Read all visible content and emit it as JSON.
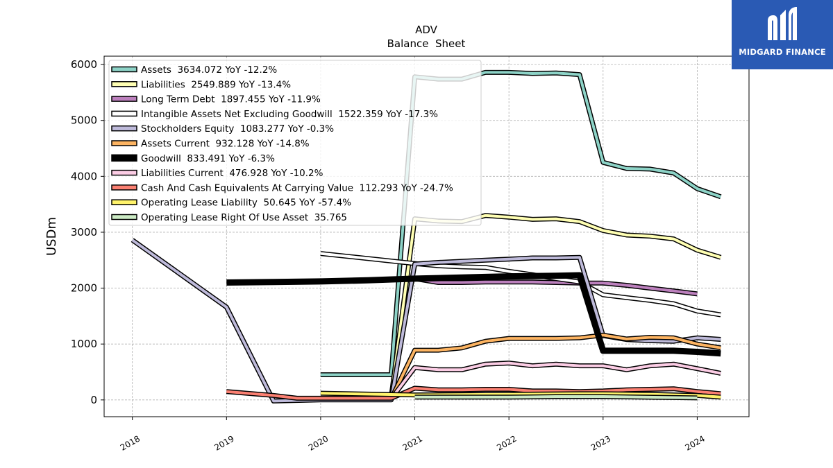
{
  "brand": {
    "name": "MIDGARD FINANCE",
    "bg_color": "#2a5ab4",
    "icon": "midgard-m-logo-icon"
  },
  "chart_data": {
    "type": "line",
    "title": "ADV",
    "subtitle": "Balance  Sheet",
    "xlabel": "",
    "ylabel": "USDm",
    "xlim": [
      2017.7,
      2024.55
    ],
    "ylim": [
      -300,
      6150
    ],
    "x_ticks": [
      2018,
      2019,
      2020,
      2021,
      2022,
      2023,
      2024
    ],
    "x_tick_labels": [
      "2018",
      "2019",
      "2020",
      "2021",
      "2022",
      "2023",
      "2024"
    ],
    "y_ticks": [
      0,
      1000,
      2000,
      3000,
      4000,
      5000,
      6000
    ],
    "y_tick_labels": [
      "0",
      "1000",
      "2000",
      "3000",
      "4000",
      "5000",
      "6000"
    ],
    "grid": true,
    "legend_position": "top-left",
    "series": [
      {
        "name": "Assets",
        "legend": "Assets  3634.072 YoY -12.2%",
        "color": "#8dd3c7",
        "width": 4,
        "points": [
          [
            2020,
            450
          ],
          [
            2020.75,
            450
          ],
          [
            2021,
            5780
          ],
          [
            2021.25,
            5740
          ],
          [
            2021.5,
            5740
          ],
          [
            2021.75,
            5860
          ],
          [
            2022,
            5860
          ],
          [
            2022.25,
            5840
          ],
          [
            2022.5,
            5850
          ],
          [
            2022.75,
            5820
          ],
          [
            2023,
            4250
          ],
          [
            2023.25,
            4140
          ],
          [
            2023.5,
            4130
          ],
          [
            2023.75,
            4060
          ],
          [
            2024,
            3780
          ],
          [
            2024.25,
            3634
          ]
        ]
      },
      {
        "name": "Liabilities",
        "legend": "Liabilities  2549.889 YoY -13.4%",
        "color": "#ffffb3",
        "width": 4,
        "points": [
          [
            2020.75,
            60
          ],
          [
            2021,
            3240
          ],
          [
            2021.25,
            3200
          ],
          [
            2021.5,
            3190
          ],
          [
            2021.75,
            3300
          ],
          [
            2022,
            3270
          ],
          [
            2022.25,
            3230
          ],
          [
            2022.5,
            3240
          ],
          [
            2022.75,
            3190
          ],
          [
            2023,
            3030
          ],
          [
            2023.25,
            2950
          ],
          [
            2023.5,
            2930
          ],
          [
            2023.75,
            2880
          ],
          [
            2024,
            2680
          ],
          [
            2024.25,
            2550
          ]
        ]
      },
      {
        "name": "Long Term Debt",
        "legend": "Long Term Debt  1897.455 YoY -11.9%",
        "color": "#bc80bd",
        "width": 4,
        "points": [
          [
            2021,
            2170
          ],
          [
            2021.25,
            2100
          ],
          [
            2021.5,
            2100
          ],
          [
            2021.75,
            2110
          ],
          [
            2022,
            2110
          ],
          [
            2022.25,
            2110
          ],
          [
            2022.5,
            2100
          ],
          [
            2022.75,
            2090
          ],
          [
            2023,
            2090
          ],
          [
            2023.25,
            2050
          ],
          [
            2023.5,
            2000
          ],
          [
            2023.75,
            1950
          ],
          [
            2024,
            1897
          ]
        ]
      },
      {
        "name": "Intangible Assets Net Excluding Goodwill",
        "legend": "Intangible Assets Net Excluding Goodwill  1522.359 YoY -17.3%",
        "color": "#ffffff",
        "width": 4,
        "points": [
          [
            2020,
            2620
          ],
          [
            2021,
            2440
          ],
          [
            2021.25,
            2400
          ],
          [
            2021.5,
            2380
          ],
          [
            2021.75,
            2370
          ],
          [
            2022,
            2300
          ],
          [
            2022.25,
            2240
          ],
          [
            2022.5,
            2170
          ],
          [
            2022.75,
            2110
          ],
          [
            2023,
            1880
          ],
          [
            2023.25,
            1830
          ],
          [
            2023.5,
            1780
          ],
          [
            2023.75,
            1720
          ],
          [
            2024,
            1590
          ],
          [
            2024.25,
            1522
          ]
        ]
      },
      {
        "name": "Stockholders Equity",
        "legend": "Stockholders Equity  1083.277 YoY -0.3%",
        "color": "#bebada",
        "width": 4,
        "points": [
          [
            2018,
            2860
          ],
          [
            2019,
            1660
          ],
          [
            2019.5,
            -20
          ],
          [
            2020,
            0
          ],
          [
            2020.75,
            0
          ],
          [
            2021,
            2430
          ],
          [
            2021.25,
            2460
          ],
          [
            2021.5,
            2480
          ],
          [
            2021.75,
            2500
          ],
          [
            2022,
            2520
          ],
          [
            2022.25,
            2540
          ],
          [
            2022.5,
            2540
          ],
          [
            2022.75,
            2550
          ],
          [
            2023,
            1150
          ],
          [
            2023.25,
            1080
          ],
          [
            2023.5,
            1060
          ],
          [
            2023.75,
            1050
          ],
          [
            2024,
            1110
          ],
          [
            2024.25,
            1083
          ]
        ]
      },
      {
        "name": "Assets Current",
        "legend": "Assets Current  932.128 YoY -14.8%",
        "color": "#fdb462",
        "width": 4,
        "points": [
          [
            2020.75,
            20
          ],
          [
            2021,
            890
          ],
          [
            2021.25,
            890
          ],
          [
            2021.5,
            930
          ],
          [
            2021.75,
            1050
          ],
          [
            2022,
            1100
          ],
          [
            2022.25,
            1100
          ],
          [
            2022.5,
            1100
          ],
          [
            2022.75,
            1110
          ],
          [
            2023,
            1160
          ],
          [
            2023.25,
            1090
          ],
          [
            2023.5,
            1120
          ],
          [
            2023.75,
            1110
          ],
          [
            2024,
            1000
          ],
          [
            2024.25,
            932
          ]
        ]
      },
      {
        "name": "Goodwill",
        "legend": "Goodwill  833.491 YoY -6.3%",
        "color": "#000000",
        "width": 9,
        "points": [
          [
            2019,
            2100
          ],
          [
            2019.5,
            2110
          ],
          [
            2020,
            2120
          ],
          [
            2020.5,
            2140
          ],
          [
            2021,
            2170
          ],
          [
            2021.5,
            2190
          ],
          [
            2021.75,
            2200
          ],
          [
            2022,
            2210
          ],
          [
            2022.5,
            2220
          ],
          [
            2022.75,
            2230
          ],
          [
            2023,
            880
          ],
          [
            2023.25,
            880
          ],
          [
            2023.5,
            880
          ],
          [
            2023.75,
            880
          ],
          [
            2024,
            860
          ],
          [
            2024.25,
            833
          ]
        ]
      },
      {
        "name": "Liabilities Current",
        "legend": "Liabilities Current  476.928 YoY -10.2%",
        "color": "#fccde5",
        "width": 4,
        "points": [
          [
            2020.75,
            20
          ],
          [
            2021,
            580
          ],
          [
            2021.25,
            540
          ],
          [
            2021.5,
            540
          ],
          [
            2021.75,
            640
          ],
          [
            2022,
            660
          ],
          [
            2022.25,
            610
          ],
          [
            2022.5,
            640
          ],
          [
            2022.75,
            610
          ],
          [
            2023,
            610
          ],
          [
            2023.25,
            540
          ],
          [
            2023.5,
            610
          ],
          [
            2023.75,
            640
          ],
          [
            2024,
            560
          ],
          [
            2024.25,
            477
          ]
        ]
      },
      {
        "name": "Cash And Cash Equivalents At Carrying Value",
        "legend": "Cash And Cash Equivalents At Carrying Value  112.293 YoY -24.7%",
        "color": "#fb8072",
        "width": 4,
        "points": [
          [
            2019,
            150
          ],
          [
            2019.5,
            80
          ],
          [
            2019.75,
            30
          ],
          [
            2020,
            30
          ],
          [
            2020.75,
            30
          ],
          [
            2021,
            210
          ],
          [
            2021.25,
            180
          ],
          [
            2021.5,
            180
          ],
          [
            2021.75,
            190
          ],
          [
            2022,
            190
          ],
          [
            2022.25,
            160
          ],
          [
            2022.5,
            160
          ],
          [
            2022.75,
            150
          ],
          [
            2023,
            160
          ],
          [
            2023.25,
            180
          ],
          [
            2023.5,
            190
          ],
          [
            2023.75,
            200
          ],
          [
            2024,
            150
          ],
          [
            2024.25,
            112
          ]
        ]
      },
      {
        "name": "Operating Lease Liability",
        "legend": "Operating Lease Liability  50.645 YoY -57.4%",
        "color": "#fff36b",
        "width": 4,
        "points": [
          [
            2020,
            120
          ],
          [
            2021,
            90
          ],
          [
            2022,
            100
          ],
          [
            2022.75,
            110
          ],
          [
            2023,
            110
          ],
          [
            2023.5,
            100
          ],
          [
            2024,
            80
          ],
          [
            2024.25,
            51
          ]
        ]
      },
      {
        "name": "Operating Lease Right Of Use Asset",
        "legend": "Operating Lease Right Of Use Asset  35.765",
        "color": "#ccebc5",
        "width": 4,
        "points": [
          [
            2021,
            50
          ],
          [
            2022,
            50
          ],
          [
            2022.5,
            60
          ],
          [
            2023,
            60
          ],
          [
            2024,
            36
          ]
        ]
      }
    ]
  }
}
